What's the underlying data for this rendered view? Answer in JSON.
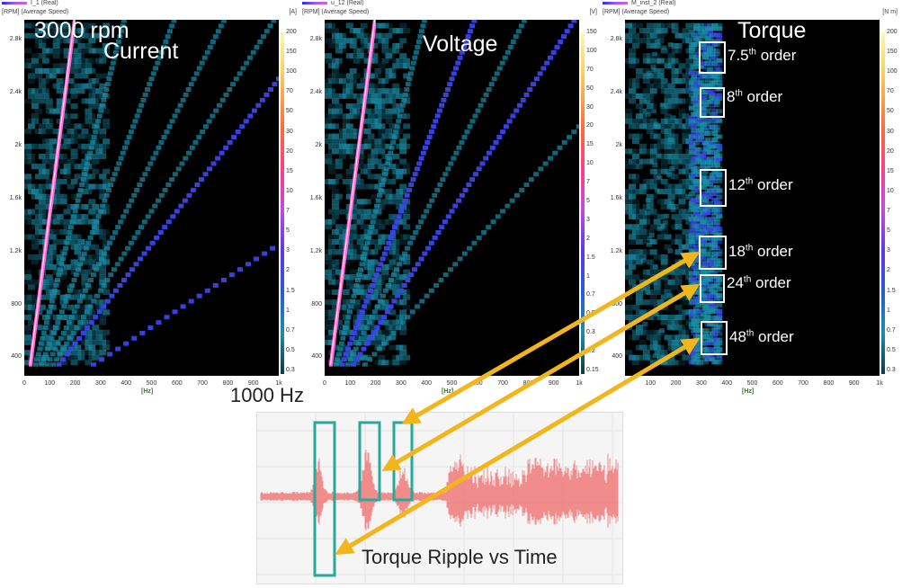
{
  "chart_data": [
    {
      "type": "heatmap",
      "panel": "current",
      "series_label": "I_1 (Real)",
      "axis_header": "[RPM] (Average Speed)",
      "unit": "[A]",
      "title": "Current",
      "annotation": "3000 rpm",
      "xlabel": "[Hz]",
      "xlim": [
        0,
        1000
      ],
      "ylim": [
        260,
        2950
      ],
      "x_ticks": [
        "0",
        "100",
        "200",
        "300",
        "400",
        "500",
        "600",
        "700",
        "800",
        "900",
        "1k"
      ],
      "y_ticks": [
        "400",
        "800",
        "1.2k",
        "1.6k",
        "2k",
        "2.4k",
        "2.8k"
      ],
      "colorbar_ticks": [
        "200",
        "150",
        "100",
        "70",
        "50",
        "30",
        "20",
        "15",
        "10",
        "7",
        "5",
        "3",
        "2",
        "1.5",
        "1",
        "0.7",
        "0.5",
        "0.3"
      ],
      "order_lines": [
        {
          "order": 4,
          "intensity": "high"
        },
        {
          "order": 24,
          "intensity": "medium"
        },
        {
          "order": 48,
          "intensity": "medium"
        },
        {
          "order": 8,
          "intensity": "low"
        },
        {
          "order": 12,
          "intensity": "low"
        },
        {
          "order": 16,
          "intensity": "low"
        },
        {
          "order": 20,
          "intensity": "low"
        }
      ]
    },
    {
      "type": "heatmap",
      "panel": "voltage",
      "series_label": "u_12 (Real)",
      "axis_header": "[RPM] (Average Speed)",
      "unit": "[V]",
      "title": "Voltage",
      "xlabel": "[Hz]",
      "xlim": [
        0,
        1000
      ],
      "ylim": [
        260,
        2950
      ],
      "x_ticks": [
        "0",
        "100",
        "200",
        "300",
        "400",
        "500",
        "600",
        "700",
        "800",
        "900",
        "1k"
      ],
      "y_ticks": [
        "400",
        "800",
        "1.2k",
        "1.6k",
        "2k",
        "2.4k",
        "2.8k"
      ],
      "colorbar_ticks": [
        "150",
        "100",
        "70",
        "50",
        "30",
        "20",
        "15",
        "10",
        "7",
        "5",
        "3",
        "2",
        "1.5",
        "1",
        "0.7",
        "0.5",
        "0.3",
        "0.2",
        "0.15"
      ],
      "order_lines": [
        {
          "order": 4,
          "intensity": "high"
        },
        {
          "order": 12,
          "intensity": "medium"
        },
        {
          "order": 20,
          "intensity": "medium"
        },
        {
          "order": 8,
          "intensity": "low"
        },
        {
          "order": 16,
          "intensity": "low"
        },
        {
          "order": 28,
          "intensity": "low"
        }
      ]
    },
    {
      "type": "heatmap",
      "panel": "torque",
      "series_label": "M_inst_2 (Real)",
      "axis_header": "[RPM] (Average Speed)",
      "unit": "[N m]",
      "title": "Torque",
      "xlabel": "[Hz]",
      "xlim": [
        0,
        1000
      ],
      "ylim": [
        260,
        2950
      ],
      "x_ticks": [
        "0",
        "100",
        "200",
        "300",
        "400",
        "500",
        "600",
        "700",
        "800",
        "900",
        "1k"
      ],
      "y_ticks": [
        "400",
        "800",
        "1.2k",
        "1.6k",
        "2k",
        "2.4k",
        "2.8k"
      ],
      "colorbar_ticks": [
        "200",
        "150",
        "100",
        "70",
        "50",
        "30",
        "20",
        "15",
        "10",
        "7",
        "5",
        "3",
        "2",
        "1.5",
        "1",
        "0.7",
        "0.5",
        "0.3"
      ],
      "orders": [
        {
          "num": "7.5",
          "sup": "th",
          "suffix": " order"
        },
        {
          "num": "8",
          "sup": "th",
          "suffix": " order"
        },
        {
          "num": "12",
          "sup": "th",
          "suffix": " order"
        },
        {
          "num": "18",
          "sup": "th",
          "suffix": " order"
        },
        {
          "num": "24",
          "sup": "th",
          "suffix": " order"
        },
        {
          "num": "48",
          "sup": "th",
          "suffix": " order"
        }
      ]
    },
    {
      "type": "line",
      "panel": "time",
      "title": "Torque Ripple vs Time",
      "annotation": "1000 Hz"
    }
  ],
  "colors": {
    "plot_bg": "#000000",
    "order_line_high": "#ff6ad5",
    "order_line_med": "#3a46e8",
    "order_line_low": "#1a8ea8",
    "arrow": "#f2b51c",
    "time_box": "#2aa89a",
    "signal": "#f07a7a"
  }
}
